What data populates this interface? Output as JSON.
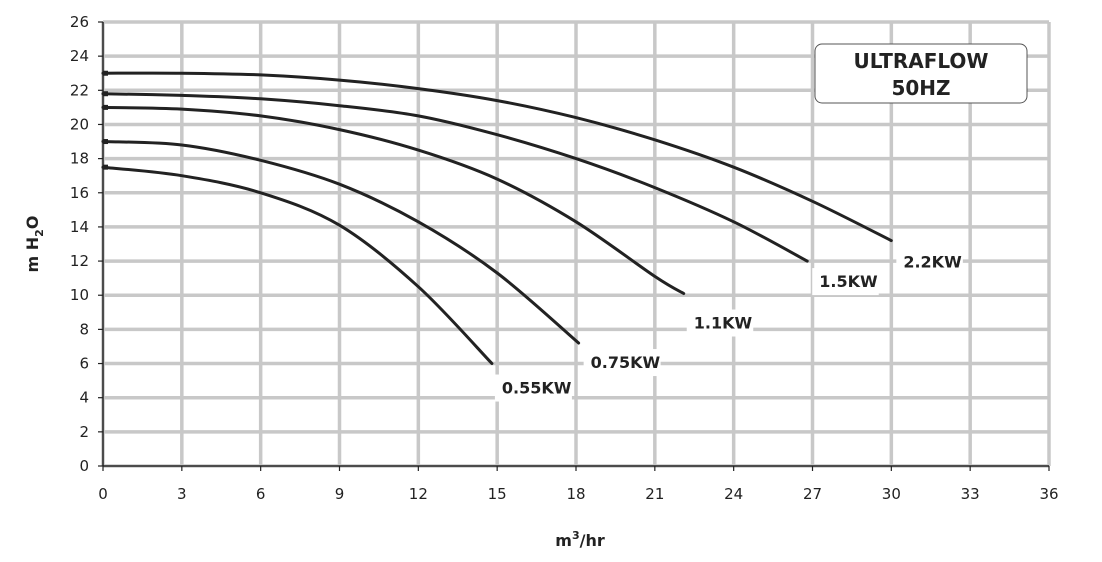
{
  "chart_data": {
    "type": "line",
    "title": "ULTRAFLOW",
    "subtitle": "50HZ",
    "xlabel_base": "m",
    "xlabel_sup": "3",
    "xlabel_tail": "/hr",
    "ylabel_pre": "m H",
    "ylabel_sub": "2",
    "ylabel_post": "O",
    "xlim": [
      0,
      36
    ],
    "ylim": [
      0,
      26
    ],
    "x_ticks": [
      0,
      3,
      6,
      9,
      12,
      15,
      18,
      21,
      24,
      27,
      30,
      33,
      36
    ],
    "y_ticks": [
      0,
      2,
      4,
      6,
      8,
      10,
      12,
      14,
      16,
      18,
      20,
      22,
      24,
      26
    ],
    "grid": true,
    "colors": {
      "grid": "#c8c8c8",
      "curve": "#222222",
      "axis": "#222222"
    },
    "series": [
      {
        "name": "0.55KW",
        "x": [
          0,
          3,
          6,
          9,
          12,
          14.8
        ],
        "y": [
          17.5,
          17.0,
          16.0,
          14.1,
          10.5,
          6.0
        ]
      },
      {
        "name": "0.75KW",
        "x": [
          0,
          3,
          6,
          9,
          12,
          15,
          18.1
        ],
        "y": [
          19.0,
          18.8,
          17.9,
          16.5,
          14.3,
          11.3,
          7.2
        ]
      },
      {
        "name": "1.1KW",
        "x": [
          0,
          3,
          6,
          9,
          12,
          15,
          18,
          21,
          22.1
        ],
        "y": [
          21.0,
          20.9,
          20.5,
          19.7,
          18.5,
          16.8,
          14.3,
          11.1,
          10.1
        ]
      },
      {
        "name": "1.5KW",
        "x": [
          0,
          3,
          6,
          9,
          12,
          15,
          18,
          21,
          24,
          26.8
        ],
        "y": [
          21.8,
          21.7,
          21.5,
          21.1,
          20.5,
          19.4,
          18.0,
          16.3,
          14.3,
          12.0
        ]
      },
      {
        "name": "2.2KW",
        "x": [
          0,
          3,
          6,
          9,
          12,
          15,
          18,
          21,
          24,
          27,
          30
        ],
        "y": [
          23.0,
          23.0,
          22.9,
          22.6,
          22.1,
          21.4,
          20.4,
          19.1,
          17.5,
          15.5,
          13.2
        ]
      }
    ]
  }
}
